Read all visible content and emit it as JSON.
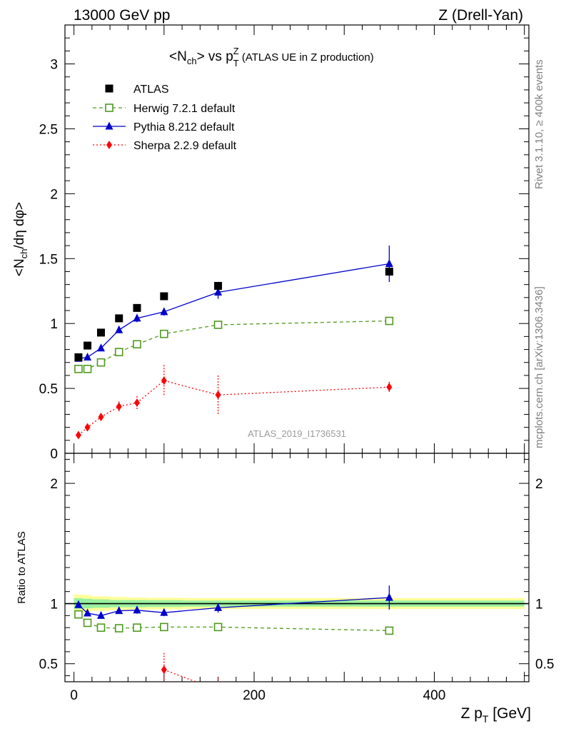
{
  "header": {
    "left": "13000 GeV pp",
    "right": "Z (Drell-Yan)"
  },
  "side_text": {
    "rivet": "Rivet 3.1.10, ≥ 400k events",
    "mcplots": "mcplots.cern.ch [arXiv:1306.3436]"
  },
  "chart_data": [
    {
      "type": "scatter",
      "title_main": "<N",
      "title_sub1": "ch",
      "title_mid": "> vs p",
      "title_sup": "Z",
      "title_sub2": "T",
      "title_rest": " (ATLAS UE in Z production)",
      "ylabel": "<N_ch/dη dφ>",
      "ylabel_parts": [
        "<N",
        "ch",
        "/dη dφ>"
      ],
      "watermark": "ATLAS_2019_I1736531",
      "xlim": [
        -10,
        505
      ],
      "ylim": [
        0,
        3.3
      ],
      "yticks": [
        "0",
        "0.5",
        "1",
        "1.5",
        "2",
        "2.5",
        "3"
      ],
      "ytick_values": [
        0,
        0.5,
        1,
        1.5,
        2,
        2.5,
        3
      ],
      "series": [
        {
          "name": "ATLAS",
          "color": "#000000",
          "marker": "square",
          "x": [
            5,
            15,
            30,
            50,
            70,
            100,
            160,
            350
          ],
          "y": [
            0.74,
            0.83,
            0.93,
            1.04,
            1.12,
            1.21,
            1.29,
            1.4
          ]
        },
        {
          "name": "Herwig 7.2.1 default",
          "color": "#4f9a1f",
          "marker": "open-square",
          "line": "dashed",
          "x": [
            5,
            15,
            30,
            50,
            70,
            100,
            160,
            350
          ],
          "y": [
            0.65,
            0.65,
            0.7,
            0.78,
            0.84,
            0.92,
            0.99,
            1.02
          ],
          "err": [
            0.01,
            0.01,
            0.01,
            0.01,
            0.01,
            0.01,
            0.01,
            0.02
          ]
        },
        {
          "name": "Pythia 8.212 default",
          "color": "#0000cc",
          "marker": "triangle",
          "line": "solid",
          "x": [
            5,
            15,
            30,
            50,
            70,
            100,
            160,
            350
          ],
          "y": [
            0.73,
            0.74,
            0.81,
            0.95,
            1.04,
            1.09,
            1.24,
            1.46
          ],
          "err": [
            0.01,
            0.01,
            0.015,
            0.02,
            0.03,
            0.03,
            0.05,
            0.14
          ]
        },
        {
          "name": "Sherpa 2.2.9 default",
          "color": "#ff0000",
          "marker": "diamond",
          "line": "dotted",
          "x": [
            5,
            15,
            30,
            50,
            70,
            100,
            160,
            350
          ],
          "y": [
            0.14,
            0.2,
            0.28,
            0.36,
            0.39,
            0.56,
            0.45,
            0.51
          ],
          "err": [
            0.01,
            0.02,
            0.03,
            0.04,
            0.05,
            0.12,
            0.15,
            0.04
          ]
        }
      ]
    },
    {
      "type": "scatter",
      "ylabel": "Ratio to ATLAS",
      "xlabel_main": "Z p",
      "xlabel_sub": "T",
      "xlabel_rest": " [GeV]",
      "xlim": [
        -10,
        505
      ],
      "ylim": [
        0.35,
        2.25
      ],
      "xticks": [
        "0",
        "200",
        "400"
      ],
      "xtick_values": [
        0,
        200,
        400
      ],
      "yticks": [
        "0.5",
        "1",
        "2"
      ],
      "ytick_values": [
        0.5,
        1,
        2
      ],
      "band": {
        "x": [
          0,
          10,
          20,
          40,
          60,
          80,
          120,
          200,
          500
        ],
        "yellow_half": [
          0.075,
          0.07,
          0.06,
          0.055,
          0.05,
          0.048,
          0.045,
          0.045
        ],
        "green_half": [
          0.045,
          0.04,
          0.035,
          0.03,
          0.03,
          0.028,
          0.025,
          0.025
        ]
      },
      "series": [
        {
          "name": "Herwig 7.2.1 default",
          "color": "#4f9a1f",
          "marker": "open-square",
          "line": "dashed",
          "x": [
            5,
            15,
            30,
            50,
            70,
            100,
            160,
            350
          ],
          "y": [
            0.91,
            0.84,
            0.8,
            0.795,
            0.8,
            0.805,
            0.805,
            0.775
          ]
        },
        {
          "name": "Pythia 8.212 default",
          "color": "#0000cc",
          "marker": "triangle",
          "line": "solid",
          "x": [
            5,
            15,
            30,
            50,
            70,
            100,
            160,
            350
          ],
          "y": [
            0.99,
            0.92,
            0.9,
            0.94,
            0.945,
            0.925,
            0.965,
            1.05
          ],
          "err": [
            0.01,
            0.01,
            0.015,
            0.02,
            0.03,
            0.03,
            0.04,
            0.1
          ]
        },
        {
          "name": "Sherpa 2.2.9 default",
          "color": "#ff0000",
          "marker": "diamond",
          "line": "dotted",
          "x": [
            100,
            160
          ],
          "y": [
            0.45,
            0.28
          ],
          "err": [
            0.14,
            0.1
          ]
        }
      ]
    }
  ]
}
